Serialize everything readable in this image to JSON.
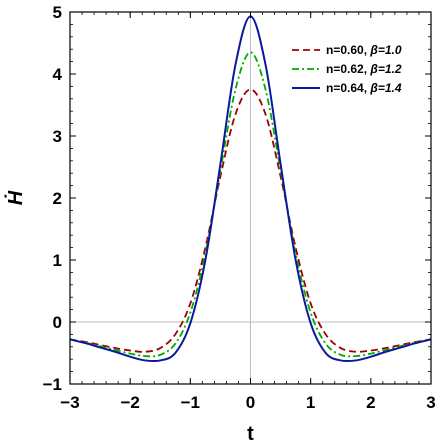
{
  "chart_data": {
    "type": "line",
    "xlabel": "t",
    "ylabel": "Ḣ",
    "xlim": [
      -3,
      3
    ],
    "ylim": [
      -1,
      5
    ],
    "xticks": [
      "−3",
      "−2",
      "−1",
      "0",
      "1",
      "2",
      "3"
    ],
    "yticks": [
      "−1",
      "0",
      "1",
      "2",
      "3",
      "4",
      "5"
    ],
    "grid": false,
    "legend_position": "top-right",
    "x": [
      -3,
      -2.75,
      -2.5,
      -2.25,
      -2,
      -1.75,
      -1.5,
      -1.25,
      -1,
      -0.75,
      -0.5,
      -0.25,
      0,
      0.25,
      0.5,
      0.75,
      1,
      1.25,
      1.5,
      1.75,
      2,
      2.25,
      2.5,
      2.75,
      3
    ],
    "series": [
      {
        "legend_n": "n=0.60, ",
        "legend_beta": "β=1.0",
        "color": "#a00000",
        "dash": "7,4",
        "values": [
          -0.28,
          -0.32,
          -0.37,
          -0.42,
          -0.46,
          -0.48,
          -0.42,
          -0.2,
          0.3,
          1.2,
          2.35,
          3.35,
          3.75,
          3.35,
          2.35,
          1.2,
          0.3,
          -0.2,
          -0.42,
          -0.48,
          -0.46,
          -0.42,
          -0.37,
          -0.32,
          -0.28
        ]
      },
      {
        "legend_n": "n=0.62, ",
        "legend_beta": "β=1.2",
        "color": "#00aa00",
        "dash": "7,3,2,3",
        "values": [
          -0.28,
          -0.33,
          -0.39,
          -0.45,
          -0.51,
          -0.55,
          -0.53,
          -0.35,
          0.15,
          1.1,
          2.45,
          3.75,
          4.35,
          3.75,
          2.45,
          1.1,
          0.15,
          -0.35,
          -0.53,
          -0.55,
          -0.51,
          -0.45,
          -0.39,
          -0.33,
          -0.28
        ]
      },
      {
        "legend_n": "n=0.64, ",
        "legend_beta": "β=1.4",
        "color": "#0a1a9e",
        "dash": "",
        "values": [
          -0.28,
          -0.34,
          -0.41,
          -0.48,
          -0.56,
          -0.62,
          -0.62,
          -0.5,
          -0.02,
          1.0,
          2.55,
          4.15,
          4.93,
          4.15,
          2.55,
          1.0,
          -0.02,
          -0.5,
          -0.62,
          -0.62,
          -0.56,
          -0.48,
          -0.41,
          -0.34,
          -0.28
        ]
      }
    ]
  }
}
